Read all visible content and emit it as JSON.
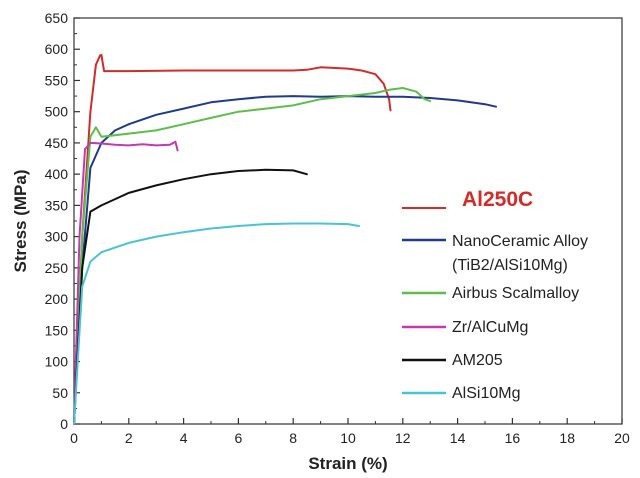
{
  "chart_data": {
    "type": "line",
    "xlabel": "Strain (%)",
    "ylabel": "Stress (MPa)",
    "xlim": [
      0,
      20
    ],
    "ylim": [
      0,
      650
    ],
    "xticks": [
      "0",
      "2",
      "4",
      "6",
      "8",
      "10",
      "12",
      "14",
      "16",
      "18",
      "20"
    ],
    "yticks": [
      "0",
      "50",
      "100",
      "150",
      "200",
      "250",
      "300",
      "350",
      "400",
      "450",
      "500",
      "550",
      "600",
      "650"
    ],
    "grid": false,
    "legend_position": "right",
    "series": [
      {
        "name": "Al250C",
        "color": "#d42a2a",
        "legend_lines": [
          "Al250C"
        ],
        "x": [
          0,
          0.3,
          0.6,
          0.8,
          0.95,
          1.0,
          1.1,
          2,
          4,
          6,
          8,
          8.5,
          9,
          10,
          10.5,
          11,
          11.3,
          11.5,
          11.55
        ],
        "y": [
          0,
          300,
          500,
          575,
          590,
          591,
          565,
          565,
          566,
          566,
          566,
          567,
          571,
          569,
          566,
          560,
          545,
          520,
          502
        ]
      },
      {
        "name": "NanoCeramic Alloy (TiB2/AlSi10Mg)",
        "color": "#1f3a8f",
        "legend_lines": [
          "NanoCeramic Alloy",
          "(TiB2/AlSi10Mg)"
        ],
        "x": [
          0,
          0.3,
          0.6,
          1,
          1.5,
          2,
          3,
          4,
          5,
          6,
          7,
          8,
          9,
          10,
          11,
          12,
          13,
          14,
          15,
          15.4
        ],
        "y": [
          0,
          250,
          410,
          450,
          470,
          480,
          495,
          505,
          515,
          520,
          524,
          525,
          524,
          525,
          524,
          524,
          522,
          518,
          512,
          508
        ]
      },
      {
        "name": "Airbus Scalmalloy",
        "color": "#5cbf4a",
        "legend_lines": [
          "Airbus Scalmalloy"
        ],
        "x": [
          0,
          0.3,
          0.6,
          0.8,
          1,
          2,
          3,
          4,
          5,
          6,
          7,
          8,
          9,
          10,
          11,
          11.5,
          12,
          12.5,
          12.8,
          13
        ],
        "y": [
          0,
          300,
          460,
          475,
          460,
          465,
          470,
          480,
          490,
          500,
          505,
          510,
          520,
          525,
          530,
          535,
          538,
          532,
          520,
          517
        ]
      },
      {
        "name": "Zr/AlCuMg",
        "color": "#c23ab0",
        "legend_lines": [
          "Zr/AlCuMg"
        ],
        "x": [
          0,
          0.2,
          0.4,
          0.6,
          1,
          1.5,
          2,
          2.5,
          3,
          3.5,
          3.7,
          3.78
        ],
        "y": [
          0,
          300,
          440,
          450,
          449,
          447,
          446,
          448,
          446,
          447,
          452,
          438
        ]
      },
      {
        "name": "AM205",
        "color": "#111111",
        "legend_lines": [
          "AM205"
        ],
        "x": [
          0,
          0.3,
          0.6,
          1,
          1.5,
          2,
          3,
          4,
          5,
          6,
          7,
          8,
          8.5
        ],
        "y": [
          0,
          250,
          340,
          350,
          360,
          370,
          382,
          392,
          400,
          405,
          407,
          406,
          400
        ]
      },
      {
        "name": "AlSi10Mg",
        "color": "#49c3d6",
        "legend_lines": [
          "AlSi10Mg"
        ],
        "x": [
          0,
          0.3,
          0.6,
          1,
          2,
          3,
          4,
          5,
          6,
          7,
          8,
          9,
          10,
          10.4
        ],
        "y": [
          0,
          220,
          260,
          275,
          290,
          300,
          307,
          313,
          317,
          320,
          321,
          321,
          320,
          317
        ]
      }
    ]
  }
}
